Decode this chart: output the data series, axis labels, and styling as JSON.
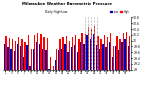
{
  "title": "Milwaukee Weather Barometric Pressure",
  "subtitle": "Daily High/Low",
  "background_color": "#ffffff",
  "high_color": "#ff0000",
  "low_color": "#0000bb",
  "ylim": [
    29.0,
    30.75
  ],
  "ytick_labels": [
    "29",
    "29.2",
    "29.4",
    "29.6",
    "29.8",
    "30",
    "30.2",
    "30.4",
    "30.6",
    "30.8"
  ],
  "ytick_vals": [
    29.0,
    29.2,
    29.4,
    29.6,
    29.8,
    30.0,
    30.2,
    30.4,
    30.6,
    30.8
  ],
  "highs": [
    30.15,
    30.08,
    30.05,
    30.0,
    30.12,
    30.06,
    29.95,
    30.18,
    29.72,
    30.2,
    30.25,
    30.22,
    30.12,
    30.08,
    29.42,
    29.12,
    29.7,
    30.05,
    30.12,
    30.15,
    29.98,
    30.12,
    30.18,
    30.05,
    30.25,
    30.22,
    30.48,
    30.4,
    30.52,
    30.15,
    30.05,
    30.2,
    30.12,
    30.25,
    29.82,
    30.15,
    30.05,
    30.25,
    30.3,
    30.15
  ],
  "lows": [
    29.88,
    29.78,
    29.72,
    29.65,
    29.88,
    29.82,
    29.42,
    29.85,
    29.12,
    29.72,
    29.95,
    29.88,
    29.72,
    29.68,
    29.02,
    28.92,
    29.32,
    29.68,
    29.72,
    29.88,
    29.62,
    29.78,
    29.85,
    29.62,
    29.95,
    29.88,
    30.18,
    30.05,
    30.22,
    29.85,
    29.72,
    29.88,
    29.78,
    29.95,
    29.42,
    29.82,
    29.68,
    29.95,
    30.05,
    29.82
  ],
  "dashed_indices": [
    25,
    26,
    27,
    28,
    29
  ],
  "n_bars": 40
}
